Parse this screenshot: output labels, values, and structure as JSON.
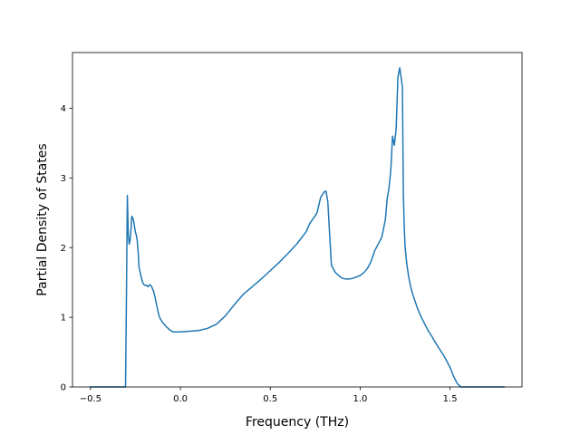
{
  "chart_data": {
    "type": "line",
    "title": "",
    "xlabel": "Frequency (THz)",
    "ylabel": "Partial Density of States",
    "xlim": [
      -0.6,
      1.9
    ],
    "ylim": [
      0,
      4.8
    ],
    "xticks": [
      -0.5,
      0.0,
      0.5,
      1.0,
      1.5
    ],
    "xtick_labels": [
      "−0.5",
      "0.0",
      "0.5",
      "1.0",
      "1.5"
    ],
    "yticks": [
      0,
      1,
      2,
      3,
      4
    ],
    "ytick_labels": [
      "0",
      "1",
      "2",
      "3",
      "4"
    ],
    "grid": false,
    "legend": "none",
    "series": [
      {
        "color": "#1f77b4",
        "x": [
          -0.5,
          -0.31,
          -0.305,
          -0.3,
          -0.295,
          -0.29,
          -0.285,
          -0.28,
          -0.275,
          -0.27,
          -0.265,
          -0.26,
          -0.255,
          -0.25,
          -0.245,
          -0.24,
          -0.235,
          -0.23,
          -0.22,
          -0.21,
          -0.2,
          -0.19,
          -0.18,
          -0.17,
          -0.16,
          -0.15,
          -0.14,
          -0.13,
          -0.12,
          -0.11,
          -0.1,
          -0.09,
          -0.08,
          -0.06,
          -0.04,
          -0.02,
          0.0,
          0.05,
          0.1,
          0.15,
          0.2,
          0.25,
          0.3,
          0.35,
          0.4,
          0.45,
          0.5,
          0.55,
          0.6,
          0.65,
          0.7,
          0.72,
          0.74,
          0.76,
          0.78,
          0.8,
          0.81,
          0.82,
          0.83,
          0.84,
          0.86,
          0.88,
          0.9,
          0.92,
          0.94,
          0.96,
          0.98,
          1.0,
          1.02,
          1.04,
          1.06,
          1.08,
          1.1,
          1.12,
          1.14,
          1.15,
          1.16,
          1.17,
          1.18,
          1.19,
          1.2,
          1.21,
          1.22,
          1.23,
          1.235,
          1.24,
          1.245,
          1.25,
          1.26,
          1.27,
          1.28,
          1.29,
          1.3,
          1.32,
          1.34,
          1.36,
          1.38,
          1.4,
          1.42,
          1.44,
          1.46,
          1.48,
          1.5,
          1.52,
          1.54,
          1.56,
          1.58,
          1.59,
          1.6,
          1.61,
          1.65,
          1.8
        ],
        "y": [
          0.0,
          0.0,
          0.0,
          1.3,
          2.75,
          2.2,
          2.05,
          2.1,
          2.25,
          2.45,
          2.43,
          2.38,
          2.3,
          2.22,
          2.18,
          2.1,
          1.95,
          1.72,
          1.6,
          1.5,
          1.46,
          1.46,
          1.44,
          1.47,
          1.44,
          1.38,
          1.28,
          1.15,
          1.03,
          0.97,
          0.93,
          0.9,
          0.87,
          0.82,
          0.79,
          0.79,
          0.79,
          0.8,
          0.81,
          0.84,
          0.9,
          1.02,
          1.18,
          1.33,
          1.44,
          1.55,
          1.67,
          1.79,
          1.92,
          2.06,
          2.23,
          2.35,
          2.42,
          2.5,
          2.72,
          2.8,
          2.81,
          2.66,
          2.2,
          1.75,
          1.65,
          1.6,
          1.56,
          1.55,
          1.55,
          1.56,
          1.58,
          1.6,
          1.64,
          1.7,
          1.8,
          1.95,
          2.05,
          2.15,
          2.4,
          2.7,
          2.85,
          3.1,
          3.6,
          3.47,
          3.7,
          4.45,
          4.58,
          4.4,
          4.3,
          2.8,
          2.3,
          2.0,
          1.75,
          1.58,
          1.45,
          1.35,
          1.27,
          1.12,
          1.0,
          0.9,
          0.8,
          0.72,
          0.63,
          0.55,
          0.47,
          0.38,
          0.28,
          0.15,
          0.05,
          0.0,
          0.0,
          0.0,
          0.0,
          0.0,
          0.0,
          0.0
        ]
      }
    ]
  }
}
